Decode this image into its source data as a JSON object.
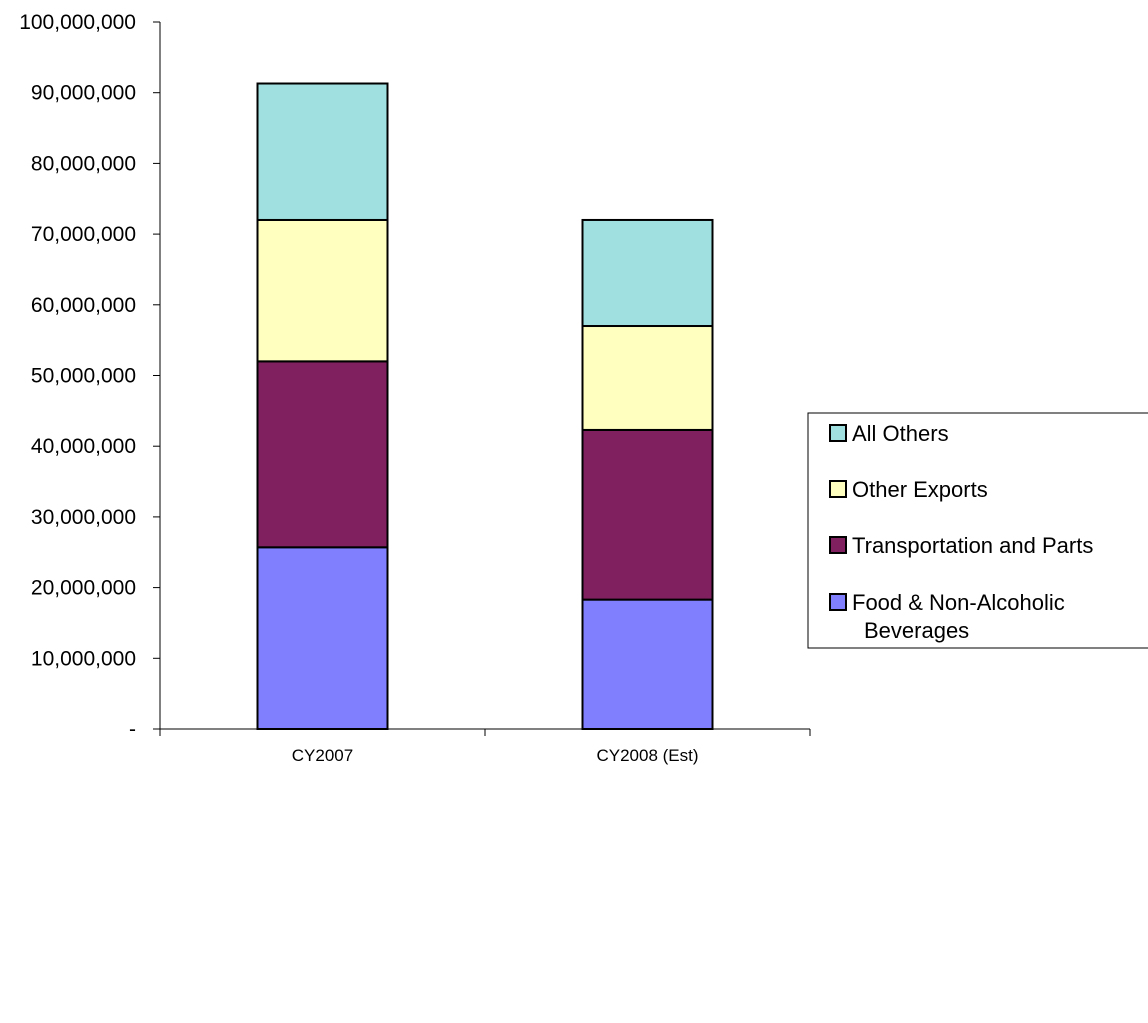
{
  "chart_data": {
    "type": "bar",
    "stacked": true,
    "categories": [
      "CY2007",
      "CY2008 (Est)"
    ],
    "series": [
      {
        "name": "Food & Non-Alcoholic Beverages",
        "values": [
          25700000,
          18300000
        ],
        "color": "#8080ff"
      },
      {
        "name": "Transportation and Parts",
        "values": [
          26300000,
          24000000
        ],
        "color": "#80205f"
      },
      {
        "name": "Other Exports",
        "values": [
          20000000,
          14700000
        ],
        "color": "#ffffc0"
      },
      {
        "name": "All Others",
        "values": [
          19300000,
          15000000
        ],
        "color": "#a0e0e0"
      }
    ],
    "ylim": [
      0,
      100000000
    ],
    "yticks": [
      0,
      10000000,
      20000000,
      30000000,
      40000000,
      50000000,
      60000000,
      70000000,
      80000000,
      90000000,
      100000000
    ],
    "ytick_labels": [
      "-",
      "10,000,000",
      "20,000,000",
      "30,000,000",
      "40,000,000",
      "50,000,000",
      "60,000,000",
      "70,000,000",
      "80,000,000",
      "90,000,000",
      "100,000,000"
    ],
    "legend": {
      "position": "right",
      "entries": [
        {
          "lines": [
            "All Others"
          ],
          "color": "#a0e0e0"
        },
        {
          "lines": [
            "Other Exports"
          ],
          "color": "#ffffc0"
        },
        {
          "lines": [
            "Transportation and Parts"
          ],
          "color": "#80205f"
        },
        {
          "lines": [
            "Food & Non-Alcoholic",
            "Beverages"
          ],
          "color": "#8080ff"
        }
      ]
    },
    "grid": false
  }
}
